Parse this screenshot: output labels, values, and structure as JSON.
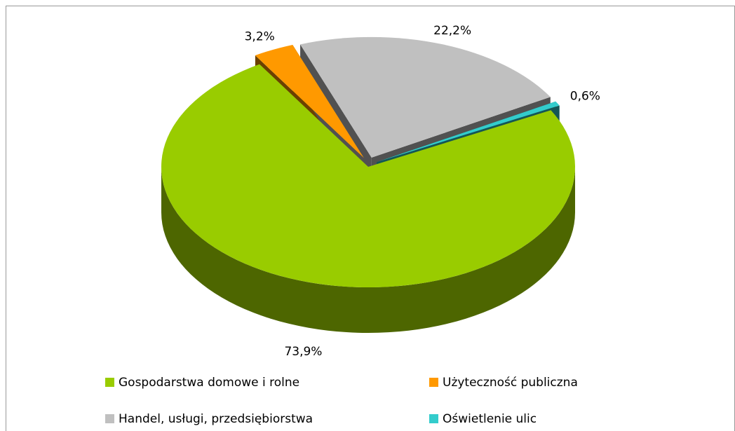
{
  "chart_data": {
    "type": "pie",
    "categories": [
      "Gospodarstwa domowe i rolne",
      "Użyteczność publiczna",
      "Handel, usługi, przedsiębiorstwa",
      "Oświetlenie ulic"
    ],
    "values": [
      73.9,
      3.2,
      22.2,
      0.6
    ],
    "value_labels": [
      "73,9%",
      "3,2%",
      "22,2%",
      "0,6%"
    ],
    "colors": [
      "#99cc00",
      "#ff9900",
      "#c0c0c0",
      "#33cccc"
    ]
  }
}
